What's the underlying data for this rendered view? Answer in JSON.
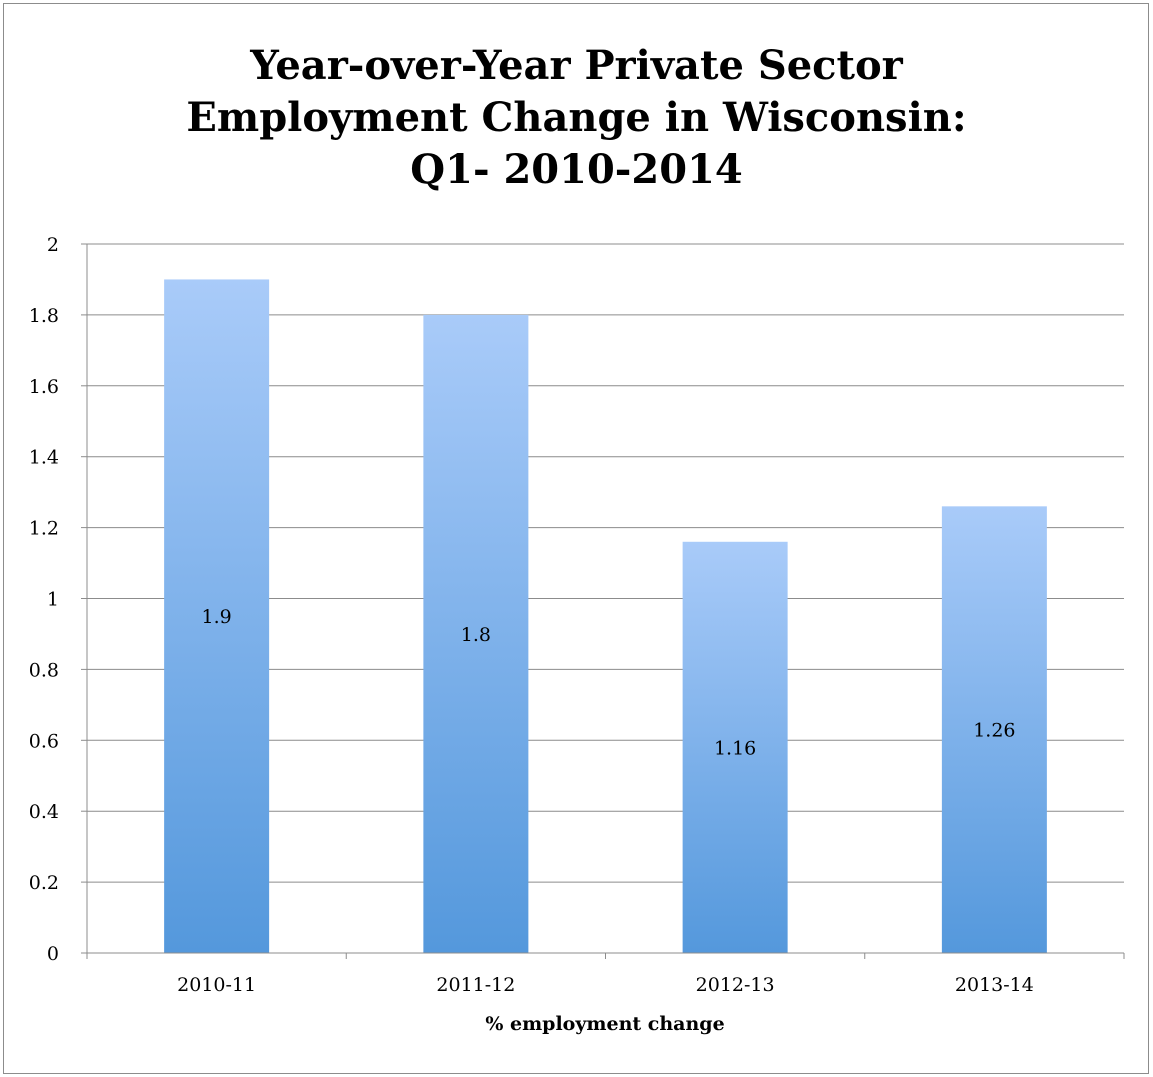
{
  "chart_data": {
    "type": "bar",
    "title_lines": [
      "Year-over-Year Private Sector",
      "Employment Change in Wisconsin:",
      "Q1- 2010-2014"
    ],
    "categories": [
      "2010-11",
      "2011-12",
      "2012-13",
      "2013-14"
    ],
    "values": [
      1.9,
      1.8,
      1.16,
      1.26
    ],
    "data_labels": [
      "1.9",
      "1.8",
      "1.16",
      "1.26"
    ],
    "xlabel": "% employment change",
    "ylabel": "",
    "ylim": [
      0,
      2
    ],
    "yticks": [
      "0",
      "0.2",
      "0.4",
      "0.6",
      "0.8",
      "1",
      "1.2",
      "1.4",
      "1.6",
      "1.8",
      "2"
    ],
    "grid": true,
    "legend": "none",
    "colors": {
      "bar_top": "#a9cbf9",
      "bar_bottom": "#5498dc",
      "grid": "#8c8c8c",
      "frame": "#8c8c8c"
    }
  }
}
